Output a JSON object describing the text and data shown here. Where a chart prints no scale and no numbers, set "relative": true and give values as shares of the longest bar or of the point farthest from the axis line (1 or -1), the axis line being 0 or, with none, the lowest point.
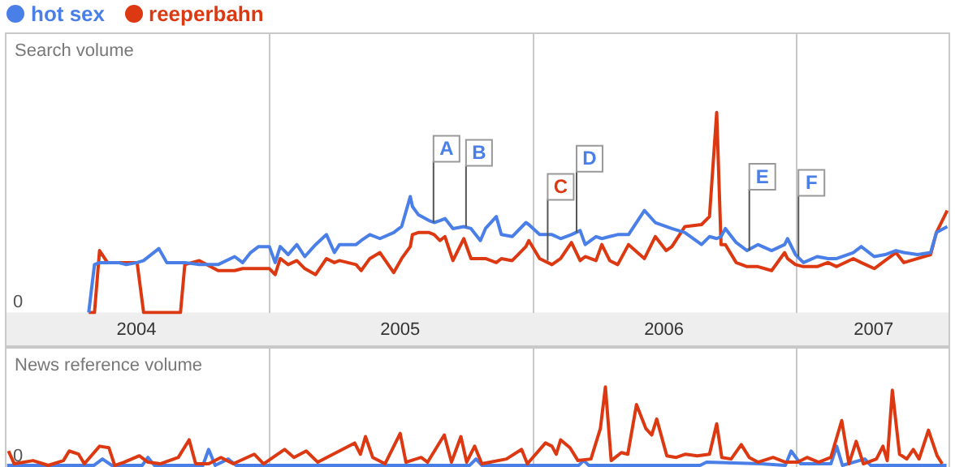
{
  "chart_data": [
    {
      "type": "line",
      "ylabel": "Search volume",
      "relative": true,
      "grid": "x",
      "legend": "top left",
      "marker": "none",
      "line_style": "solid",
      "xlim": [
        "2004-01-01",
        "2007-08-01"
      ],
      "xticks": [
        {
          "value": "2004-07-01",
          "label": "2004"
        },
        {
          "value": "2005-01-01",
          "label": null
        },
        {
          "value": "2005-07-01",
          "label": "2005"
        },
        {
          "value": "2006-01-01",
          "label": null
        },
        {
          "value": "2006-07-01",
          "label": "2006"
        },
        {
          "value": "2007-01-01",
          "label": null
        },
        {
          "value": "2007-04-17",
          "label": "2007"
        }
      ],
      "x": [
        "2004-04-26",
        "2004-05-04",
        "2004-05-11",
        "2004-05-22",
        "2004-06-06",
        "2004-06-17",
        "2004-07-02",
        "2004-07-11",
        "2004-08-01",
        "2004-08-12",
        "2004-08-31",
        "2004-09-06",
        "2004-09-26",
        "2004-10-22",
        "2004-11-14",
        "2004-11-25",
        "2004-12-06",
        "2004-12-17",
        "2005-01-01",
        "2005-01-09",
        "2005-01-16",
        "2005-01-27",
        "2005-02-08",
        "2005-02-19",
        "2005-03-06",
        "2005-03-21",
        "2005-04-01",
        "2005-04-08",
        "2005-05-01",
        "2005-05-08",
        "2005-05-20",
        "2005-06-03",
        "2005-06-22",
        "2005-07-03",
        "2005-07-15",
        "2005-07-18",
        "2005-07-26",
        "2005-08-10",
        "2005-08-17",
        "2005-08-25",
        "2005-09-01",
        "2005-09-12",
        "2005-09-27",
        "2005-10-07",
        "2005-10-20",
        "2005-10-27",
        "2005-11-11",
        "2005-11-18",
        "2005-12-03",
        "2005-12-22",
        "2005-12-26",
        "2006-01-10",
        "2006-01-27",
        "2006-02-08",
        "2006-02-23",
        "2006-03-07",
        "2006-03-14",
        "2006-03-29",
        "2006-04-06",
        "2006-04-17",
        "2006-04-28",
        "2006-05-13",
        "2006-06-04",
        "2006-06-19",
        "2006-07-04",
        "2006-07-12",
        "2006-07-30",
        "2006-08-22",
        "2006-09-02",
        "2006-09-12",
        "2006-09-18",
        "2006-09-24",
        "2006-10-09",
        "2006-10-24",
        "2006-11-08",
        "2006-11-27",
        "2006-12-15",
        "2006-12-19",
        "2006-12-30",
        "2007-01-10",
        "2007-01-29",
        "2007-02-13",
        "2007-02-25",
        "2007-03-20",
        "2007-03-31",
        "2007-04-18",
        "2007-05-03",
        "2007-05-18",
        "2007-05-29",
        "2007-06-17",
        "2007-07-05",
        "2007-07-13",
        "2007-07-28"
      ],
      "series": [
        {
          "name": "hot sex",
          "color": "#4a7fe8",
          "values": [
            0,
            0.24,
            0.25,
            0.25,
            0.25,
            0.24,
            0.25,
            0.26,
            0.32,
            0.25,
            0.25,
            0.25,
            0.24,
            0.24,
            0.28,
            0.25,
            0.3,
            0.33,
            0.33,
            0.25,
            0.33,
            0.29,
            0.34,
            0.28,
            0.34,
            0.39,
            0.3,
            0.34,
            0.34,
            0.36,
            0.39,
            0.37,
            0.4,
            0.43,
            0.58,
            0.53,
            0.49,
            0.46,
            0.45,
            0.46,
            0.47,
            0.42,
            0.43,
            0.42,
            0.36,
            0.42,
            0.48,
            0.39,
            0.38,
            0.45,
            0.44,
            0.39,
            0.39,
            0.37,
            0.39,
            0.41,
            0.34,
            0.38,
            0.37,
            0.38,
            0.39,
            0.39,
            0.51,
            0.45,
            0.43,
            0.42,
            0.4,
            0.34,
            0.38,
            0.37,
            0.38,
            0.42,
            0.35,
            0.31,
            0.34,
            0.31,
            0.34,
            0.37,
            0.29,
            0.25,
            0.28,
            0.27,
            0.27,
            0.3,
            0.33,
            0.28,
            0.29,
            0.31,
            0.3,
            0.29,
            0.3,
            0.4,
            0.43
          ]
        },
        {
          "name": "reeperbahn",
          "color": "#dc3912",
          "values": [
            0,
            0,
            0.31,
            0.25,
            0.25,
            0.25,
            0.25,
            0,
            0,
            0,
            0,
            0.24,
            0.26,
            0.21,
            0.21,
            0.22,
            0.22,
            0.22,
            0.22,
            0.19,
            0.27,
            0.24,
            0.26,
            0.22,
            0.19,
            0.27,
            0.25,
            0.26,
            0.24,
            0.21,
            0.27,
            0.3,
            0.2,
            0.27,
            0.33,
            0.39,
            0.4,
            0.4,
            0.39,
            0.36,
            0.38,
            0.26,
            0.37,
            0.27,
            0.27,
            0.27,
            0.25,
            0.27,
            0.26,
            0.33,
            0.36,
            0.27,
            0.24,
            0.27,
            0.35,
            0.26,
            0.28,
            0.26,
            0.34,
            0.26,
            0.24,
            0.34,
            0.27,
            0.38,
            0.31,
            0.33,
            0.43,
            0.44,
            0.48,
            1.0,
            0.34,
            0.34,
            0.25,
            0.23,
            0.23,
            0.21,
            0.3,
            0.27,
            0.24,
            0.23,
            0.23,
            0.25,
            0.23,
            0.27,
            0.25,
            0.22,
            0.26,
            0.3,
            0.25,
            0.27,
            0.29,
            0.4,
            0.51
          ]
        }
      ],
      "annotations": [
        "0",
        {
          "text": "A",
          "x": "2005-08-15",
          "y": 0.45
        },
        {
          "text": "B",
          "x": "2005-09-29",
          "y": 0.43
        },
        {
          "text": "C",
          "x": "2006-01-20",
          "y": 0.26
        },
        {
          "text": "D",
          "x": "2006-03-01",
          "y": 0.4
        },
        {
          "text": "E",
          "x": "2006-10-26",
          "y": 0.31
        },
        {
          "text": "F",
          "x": "2007-01-02",
          "y": 0.28
        }
      ]
    },
    {
      "type": "line",
      "ylabel": "News reference volume",
      "relative": true,
      "grid": "x",
      "marker": "none",
      "line_style": "solid",
      "tick_labels": false,
      "xlim": [
        "2004-01-01",
        "2007-08-01"
      ],
      "xticks": [
        {
          "value": "2005-01-01",
          "label": null
        },
        {
          "value": "2006-01-01",
          "label": null
        },
        {
          "value": "2007-01-01",
          "label": null
        }
      ],
      "series": [
        {
          "color": "#dc3912",
          "x": [
            "2004-01-06",
            "2004-01-14",
            "2004-02-09",
            "2004-03-01",
            "2004-03-22",
            "2004-03-30",
            "2004-04-12",
            "2004-04-20",
            "2004-05-11",
            "2004-05-24",
            "2004-06-01",
            "2004-06-14",
            "2004-07-05",
            "2004-07-17",
            "2004-08-03",
            "2004-08-28",
            "2004-09-12",
            "2004-09-21",
            "2004-10-09",
            "2004-10-26",
            "2004-11-12",
            "2004-12-11",
            "2004-12-24",
            "2005-01-22",
            "2005-02-04",
            "2005-02-21",
            "2005-03-09",
            "2005-04-29",
            "2005-05-07",
            "2005-05-14",
            "2005-05-24",
            "2005-06-10",
            "2005-07-01",
            "2005-07-09",
            "2005-07-30",
            "2005-08-08",
            "2005-08-31",
            "2005-09-10",
            "2005-09-23",
            "2005-10-01",
            "2005-10-12",
            "2005-10-22",
            "2005-11-25",
            "2005-12-16",
            "2005-12-24",
            "2006-01-18",
            "2006-01-27",
            "2006-02-02",
            "2006-02-08",
            "2006-02-21",
            "2006-03-04",
            "2006-03-22",
            "2006-04-04",
            "2006-04-11",
            "2006-04-19",
            "2006-05-03",
            "2006-05-12",
            "2006-05-24",
            "2006-06-06",
            "2006-06-14",
            "2006-06-21",
            "2006-07-05",
            "2006-07-18",
            "2006-07-31",
            "2006-08-16",
            "2006-09-02",
            "2006-09-12",
            "2006-09-19",
            "2006-10-02",
            "2006-10-16",
            "2006-10-27",
            "2006-11-08",
            "2006-11-29",
            "2006-12-16",
            "2007-01-02",
            "2007-01-15",
            "2007-01-31",
            "2007-02-17",
            "2007-03-04",
            "2007-03-14",
            "2007-03-24",
            "2007-04-03",
            "2007-04-21",
            "2007-04-30",
            "2007-05-06",
            "2007-05-13",
            "2007-05-23",
            "2007-06-02",
            "2007-06-11",
            "2007-06-19",
            "2007-07-02",
            "2007-07-14",
            "2007-07-21"
          ],
          "values": [
            0.2,
            0.04,
            0.08,
            0.02,
            0.08,
            0.2,
            0.16,
            0.04,
            0.26,
            0.24,
            0.02,
            0.06,
            0.14,
            0.06,
            0.04,
            0.12,
            0.34,
            0.04,
            0.04,
            0.12,
            0.04,
            0.16,
            0.04,
            0.22,
            0.12,
            0.2,
            0.06,
            0.3,
            0.16,
            0.38,
            0.12,
            0.04,
            0.42,
            0.06,
            0.12,
            0.06,
            0.4,
            0.06,
            0.38,
            0.06,
            0.26,
            0.04,
            0.1,
            0.22,
            0.04,
            0.3,
            0.26,
            0.16,
            0.34,
            0.24,
            0.08,
            0.1,
            0.48,
            1.0,
            0.08,
            0.18,
            0.16,
            0.78,
            0.48,
            0.4,
            0.6,
            0.14,
            0.12,
            0.16,
            0.14,
            0.16,
            0.54,
            0.12,
            0.1,
            0.28,
            0.12,
            0.06,
            0.12,
            0.06,
            0.06,
            0.12,
            0.06,
            0.12,
            0.58,
            0.04,
            0.32,
            0.04,
            0.1,
            0.26,
            0.08,
            0.96,
            0.16,
            0.1,
            0.22,
            0.1,
            0.46,
            0.14,
            0.04
          ]
        },
        {
          "color": "#4a7fe8",
          "x": [
            "2004-01-04",
            "2004-05-03",
            "2004-05-15",
            "2004-05-28",
            "2004-07-09",
            "2004-07-17",
            "2004-07-26",
            "2004-10-01",
            "2004-10-09",
            "2004-10-18",
            "2004-11-05",
            "2004-11-16",
            "2005-10-05",
            "2005-10-14",
            "2005-10-22",
            "2006-03-05",
            "2006-03-12",
            "2006-03-19",
            "2006-08-20",
            "2006-08-29",
            "2006-11-12",
            "2006-12-16",
            "2006-12-24",
            "2007-01-06",
            "2007-02-17",
            "2007-02-25",
            "2007-03-05",
            "2007-04-05",
            "2007-04-13",
            "2007-07-27"
          ],
          "values": [
            0.02,
            0.02,
            0.1,
            0.02,
            0.02,
            0.12,
            0.02,
            0.02,
            0.22,
            0.02,
            0.1,
            0.02,
            0.02,
            0.1,
            0.02,
            0.02,
            0.08,
            0.02,
            0.02,
            0.06,
            0.04,
            0.02,
            0.2,
            0.04,
            0.04,
            0.26,
            0.02,
            0.1,
            0.02,
            0.02
          ]
        }
      ],
      "annotations": [
        "0"
      ]
    }
  ]
}
